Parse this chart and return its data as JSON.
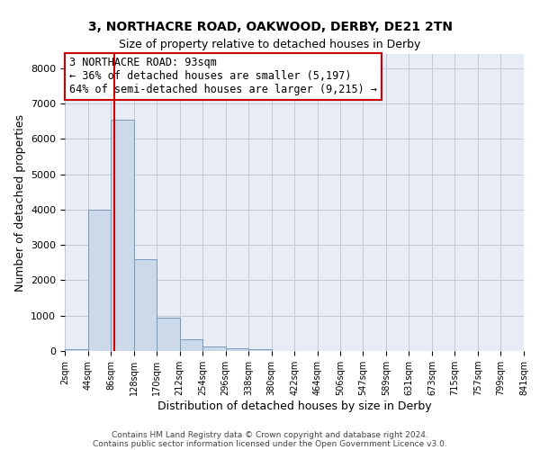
{
  "title1": "3, NORTHACRE ROAD, OAKWOOD, DERBY, DE21 2TN",
  "title2": "Size of property relative to detached houses in Derby",
  "xlabel": "Distribution of detached houses by size in Derby",
  "ylabel": "Number of detached properties",
  "bin_edges": [
    2,
    44,
    86,
    128,
    170,
    212,
    254,
    296,
    338,
    380,
    422,
    464,
    506,
    547,
    589,
    631,
    673,
    715,
    757,
    799,
    841
  ],
  "bar_heights": [
    50,
    4000,
    6550,
    2600,
    950,
    320,
    130,
    80,
    50,
    0,
    0,
    0,
    0,
    0,
    0,
    0,
    0,
    0,
    0,
    0
  ],
  "bar_color": "#ccd9e8",
  "bar_edge_color": "#7799bb",
  "vline_color": "#cc0000",
  "vline_x": 93,
  "annotation_text": "3 NORTHACRE ROAD: 93sqm\n← 36% of detached houses are smaller (5,197)\n64% of semi-detached houses are larger (9,215) →",
  "annotation_box_edgecolor": "#cc0000",
  "annotation_box_facecolor": "#ffffff",
  "ylim": [
    0,
    8400
  ],
  "yticks": [
    0,
    1000,
    2000,
    3000,
    4000,
    5000,
    6000,
    7000,
    8000
  ],
  "grid_color": "#c0c8d8",
  "background_color": "#e8edf5",
  "footer1": "Contains HM Land Registry data © Crown copyright and database right 2024.",
  "footer2": "Contains public sector information licensed under the Open Government Licence v3.0.",
  "tick_labels": [
    "2sqm",
    "44sqm",
    "86sqm",
    "128sqm",
    "170sqm",
    "212sqm",
    "254sqm",
    "296sqm",
    "338sqm",
    "380sqm",
    "422sqm",
    "464sqm",
    "506sqm",
    "547sqm",
    "589sqm",
    "631sqm",
    "673sqm",
    "715sqm",
    "757sqm",
    "799sqm",
    "841sqm"
  ]
}
